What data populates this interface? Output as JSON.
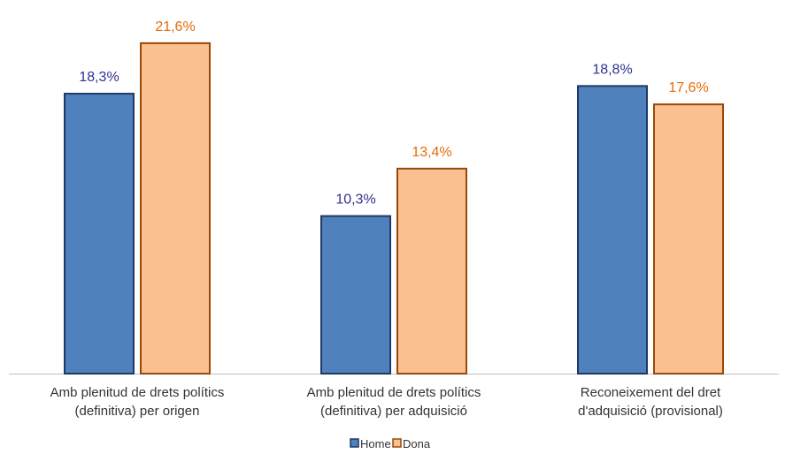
{
  "chart_data": {
    "type": "bar",
    "categories": [
      [
        "Amb plenitud de drets polítics",
        "(definitiva) per origen"
      ],
      [
        "Amb plenitud de drets polítics",
        "(definitiva) per adquisició"
      ],
      [
        "Reconeixement del dret",
        "d'adquisició (provisional)"
      ]
    ],
    "series": [
      {
        "name": "Home",
        "values": [
          18.3,
          10.3,
          18.8
        ],
        "labels": [
          "18,3%",
          "10,3%",
          "18,8%"
        ],
        "fill": "#4f81bd",
        "stroke": "#1f3864",
        "label_color": "#2e3192"
      },
      {
        "name": "Dona",
        "values": [
          21.6,
          13.4,
          17.6
        ],
        "labels": [
          "21,6%",
          "13,4%",
          "17,6%"
        ],
        "fill": "#fac090",
        "stroke": "#984807",
        "label_color": "#e46c0a"
      }
    ],
    "ylim": [
      0,
      24
    ],
    "grid": false,
    "legend": "bottom-center",
    "axis_color": "#bfbfbf"
  }
}
